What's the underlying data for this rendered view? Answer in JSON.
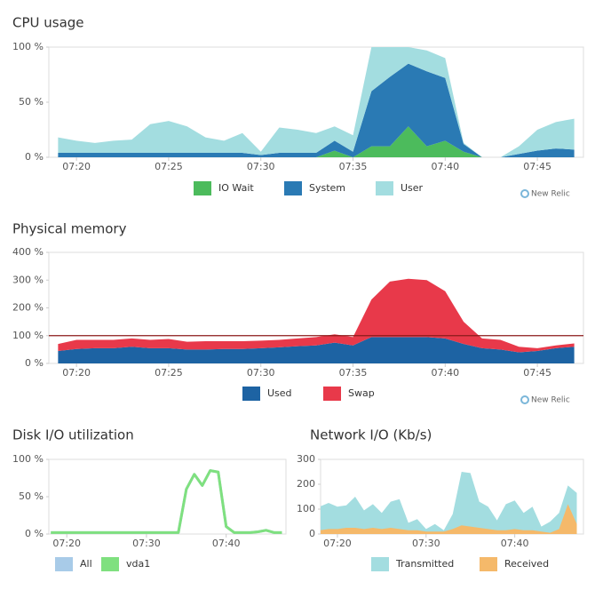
{
  "chart_data": [
    {
      "type": "area",
      "stacked": true,
      "title": "CPU usage",
      "watermark": "New Relic",
      "x": [
        "07:19",
        "07:20",
        "07:21",
        "07:22",
        "07:23",
        "07:24",
        "07:25",
        "07:26",
        "07:27",
        "07:28",
        "07:29",
        "07:30",
        "07:31",
        "07:32",
        "07:33",
        "07:34",
        "07:35",
        "07:36",
        "07:37",
        "07:38",
        "07:39",
        "07:40",
        "07:41",
        "07:42",
        "07:43",
        "07:44",
        "07:45",
        "07:46",
        "07:47"
      ],
      "xlim": [
        "07:18:30",
        "07:47:30"
      ],
      "xticks": [
        "07:20",
        "07:25",
        "07:30",
        "07:35",
        "07:40",
        "07:45"
      ],
      "ylim": [
        0,
        100
      ],
      "yticks": [
        {
          "value": 0,
          "label": "0 %"
        },
        {
          "value": 50,
          "label": "50 %"
        },
        {
          "value": 100,
          "label": "100 %"
        }
      ],
      "series": [
        {
          "name": "IO Wait",
          "color": "#4cbb5c",
          "values": [
            0,
            0,
            0,
            0,
            0,
            0,
            0,
            0,
            0,
            0,
            0,
            0,
            0,
            0,
            0,
            6,
            0,
            10,
            10,
            28,
            10,
            15,
            5,
            0,
            0,
            0,
            0,
            0,
            0
          ]
        },
        {
          "name": "System",
          "color": "#2a7ab4",
          "values": [
            4,
            4,
            4,
            4,
            4,
            4,
            4,
            4,
            4,
            4,
            4,
            2,
            4,
            4,
            4,
            9,
            5,
            50,
            63,
            57,
            68,
            57,
            7,
            0,
            0,
            3,
            6,
            8,
            7
          ]
        },
        {
          "name": "User",
          "color": "#a3dde0",
          "values": [
            14,
            11,
            9,
            11,
            12,
            26,
            29,
            24,
            14,
            11,
            18,
            3,
            23,
            21,
            18,
            13,
            15,
            40,
            27,
            15,
            19,
            18,
            1,
            0,
            0,
            7,
            19,
            24,
            28
          ]
        }
      ]
    },
    {
      "type": "area",
      "stacked": true,
      "title": "Physical memory",
      "watermark": "New Relic",
      "threshold": 100,
      "threshold_color": "#8b1a1a",
      "x": [
        "07:19",
        "07:20",
        "07:21",
        "07:22",
        "07:23",
        "07:24",
        "07:25",
        "07:26",
        "07:27",
        "07:28",
        "07:29",
        "07:30",
        "07:31",
        "07:32",
        "07:33",
        "07:34",
        "07:35",
        "07:36",
        "07:37",
        "07:38",
        "07:39",
        "07:40",
        "07:41",
        "07:42",
        "07:43",
        "07:44",
        "07:45",
        "07:46",
        "07:47"
      ],
      "xlim": [
        "07:18:30",
        "07:47:30"
      ],
      "xticks": [
        "07:20",
        "07:25",
        "07:30",
        "07:35",
        "07:40",
        "07:45"
      ],
      "ylim": [
        0,
        400
      ],
      "yticks": [
        {
          "value": 0,
          "label": "0 %"
        },
        {
          "value": 100,
          "label": "100 %"
        },
        {
          "value": 200,
          "label": "200 %"
        },
        {
          "value": 300,
          "label": "300 %"
        },
        {
          "value": 400,
          "label": "400 %"
        }
      ],
      "series": [
        {
          "name": "Used",
          "color": "#1d63a3",
          "values": [
            45,
            52,
            55,
            55,
            60,
            55,
            55,
            50,
            50,
            52,
            52,
            55,
            58,
            62,
            65,
            75,
            65,
            95,
            95,
            95,
            95,
            90,
            70,
            55,
            50,
            40,
            45,
            55,
            60
          ]
        },
        {
          "name": "Swap",
          "color": "#e8394a",
          "values": [
            25,
            33,
            30,
            30,
            30,
            30,
            33,
            28,
            30,
            28,
            28,
            27,
            27,
            28,
            30,
            30,
            30,
            135,
            200,
            210,
            205,
            170,
            80,
            35,
            35,
            20,
            10,
            10,
            12
          ]
        }
      ]
    },
    {
      "type": "line",
      "title": "Disk I/O utilization",
      "x": [
        "07:18",
        "07:19",
        "07:20",
        "07:21",
        "07:22",
        "07:23",
        "07:24",
        "07:25",
        "07:26",
        "07:27",
        "07:28",
        "07:29",
        "07:30",
        "07:31",
        "07:32",
        "07:33",
        "07:34",
        "07:35",
        "07:36",
        "07:37",
        "07:38",
        "07:39",
        "07:40",
        "07:41",
        "07:42",
        "07:43",
        "07:44",
        "07:45",
        "07:46",
        "07:47"
      ],
      "xlim": [
        "07:17:45",
        "07:47:30"
      ],
      "xticks": [
        "07:20",
        "07:30",
        "07:40"
      ],
      "ylim": [
        0,
        100
      ],
      "yticks": [
        {
          "value": 0,
          "label": "0 %"
        },
        {
          "value": 50,
          "label": "50 %"
        },
        {
          "value": 100,
          "label": "100 %"
        }
      ],
      "series": [
        {
          "name": "All",
          "color": "#a8cbe8",
          "values": [
            2,
            2,
            2,
            2,
            2,
            2,
            2,
            2,
            2,
            2,
            2,
            2,
            2,
            2,
            2,
            2,
            2,
            60,
            80,
            65,
            85,
            83,
            10,
            2,
            2,
            2,
            3,
            5,
            2,
            2
          ]
        },
        {
          "name": "vda1",
          "color": "#7fe07f",
          "values": [
            2,
            2,
            2,
            2,
            2,
            2,
            2,
            2,
            2,
            2,
            2,
            2,
            2,
            2,
            2,
            2,
            2,
            60,
            80,
            65,
            85,
            83,
            10,
            2,
            2,
            2,
            3,
            5,
            2,
            2
          ]
        }
      ]
    },
    {
      "type": "area",
      "stacked": false,
      "title": "Network I/O (Kb/s)",
      "x": [
        "07:18",
        "07:19",
        "07:20",
        "07:21",
        "07:22",
        "07:23",
        "07:24",
        "07:25",
        "07:26",
        "07:27",
        "07:28",
        "07:29",
        "07:30",
        "07:31",
        "07:32",
        "07:33",
        "07:34",
        "07:35",
        "07:36",
        "07:37",
        "07:38",
        "07:39",
        "07:40",
        "07:41",
        "07:42",
        "07:43",
        "07:44",
        "07:45",
        "07:46",
        "07:47"
      ],
      "xlim": [
        "07:18:06",
        "07:47:45"
      ],
      "xticks": [
        "07:20",
        "07:30",
        "07:40"
      ],
      "ylim": [
        0,
        300
      ],
      "yticks": [
        0,
        100,
        200,
        300
      ],
      "series": [
        {
          "name": "Transmitted",
          "color": "#a3dde0",
          "values": [
            110,
            125,
            110,
            115,
            150,
            95,
            120,
            85,
            130,
            140,
            45,
            60,
            20,
            40,
            15,
            80,
            250,
            245,
            130,
            110,
            55,
            120,
            135,
            85,
            110,
            30,
            50,
            85,
            195,
            165
          ]
        },
        {
          "name": "Received",
          "color": "#f5b96a",
          "values": [
            15,
            20,
            20,
            25,
            25,
            20,
            25,
            20,
            25,
            20,
            15,
            15,
            10,
            10,
            10,
            20,
            35,
            30,
            25,
            20,
            15,
            15,
            20,
            15,
            15,
            10,
            5,
            20,
            120,
            40
          ]
        }
      ]
    }
  ]
}
